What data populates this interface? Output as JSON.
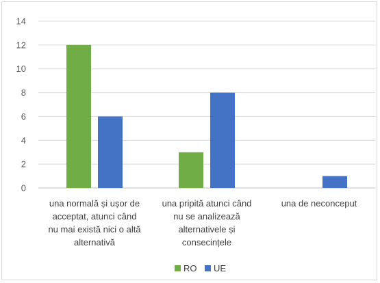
{
  "chart_data": {
    "type": "bar",
    "categories": [
      [
        "una normală și ușor de",
        "acceptat, atunci când",
        "nu mai există nici o altă",
        "alternativă"
      ],
      [
        "una pripită atunci când",
        "nu se analizează",
        "alternativele și",
        "consecințele"
      ],
      [
        "una de neconceput"
      ]
    ],
    "series": [
      {
        "name": "RO",
        "values": [
          12,
          3,
          0
        ],
        "color": "#70ad47"
      },
      {
        "name": "UE",
        "values": [
          6,
          8,
          1
        ],
        "color": "#4472c4"
      }
    ],
    "ylim": [
      0,
      14
    ],
    "yticks": [
      0,
      2,
      4,
      6,
      8,
      10,
      12,
      14
    ],
    "grid": true,
    "legend_position": "bottom"
  }
}
